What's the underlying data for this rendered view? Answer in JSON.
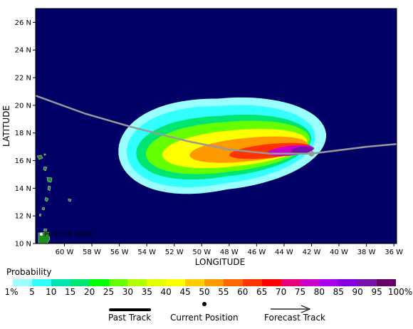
{
  "map": {
    "x_axis_title": "LONGITUDE",
    "y_axis_title": "LATITUDE",
    "lat_ticks": [
      "10 N",
      "12 N",
      "14 N",
      "16 N",
      "18 N",
      "20 N",
      "22 N",
      "24 N",
      "26 N"
    ],
    "lon_ticks": [
      "60 W",
      "58 W",
      "56 W",
      "54 W",
      "52 W",
      "50 W",
      "48 W",
      "46 W",
      "44 W",
      "42 W",
      "40 W",
      "38 W",
      "36 W"
    ],
    "lat_range": [
      10,
      27
    ],
    "lon_range": [
      -62.1,
      -35.8
    ],
    "place_label": "PORT OF SPAIN",
    "colors": {
      "ocean": "#000066",
      "land": "#1f8f1f",
      "track": "#999999"
    }
  },
  "probability": {
    "title": "Probability",
    "labels": [
      "1%",
      "5",
      "10",
      "15",
      "20",
      "25",
      "30",
      "35",
      "40",
      "45",
      "50",
      "55",
      "60",
      "65",
      "70",
      "75",
      "80",
      "85",
      "90",
      "95",
      "100%"
    ],
    "colors": [
      "#99ffff",
      "#33ffff",
      "#00e6b3",
      "#00e673",
      "#00ff00",
      "#66ff00",
      "#b3ff00",
      "#e6ff00",
      "#ffff00",
      "#ffcc00",
      "#ff9900",
      "#ff6600",
      "#ff3300",
      "#ff0000",
      "#e6007a",
      "#cc00cc",
      "#aa00ee",
      "#8800dd",
      "#7711aa",
      "#660066"
    ]
  },
  "legend": {
    "past_track": "Past Track",
    "current_position": "Current Position",
    "forecast_track": "Forecast Track"
  },
  "chart_data": {
    "type": "heatmap",
    "xlabel": "LONGITUDE",
    "ylabel": "LATITUDE",
    "xlim": [
      -62.1,
      -35.8
    ],
    "ylim": [
      10,
      27
    ],
    "track": [
      {
        "lon": -62.1,
        "lat": 20.7
      },
      {
        "lon": -58.5,
        "lat": 19.4
      },
      {
        "lon": -55.0,
        "lat": 18.4
      },
      {
        "lon": -51.0,
        "lat": 17.4
      },
      {
        "lon": -48.0,
        "lat": 16.8
      },
      {
        "lon": -45.0,
        "lat": 16.5
      },
      {
        "lon": -42.0,
        "lat": 16.5
      },
      {
        "lon": -38.0,
        "lat": 17.0
      },
      {
        "lon": -35.8,
        "lat": 17.2
      }
    ],
    "current_position": {
      "lon": -42.0,
      "lat": 16.5
    },
    "probability_zones": [
      {
        "min_pct": 1,
        "center": [
          -48.5,
          17.2
        ],
        "half_len": 7.6,
        "half_wid": 3.3,
        "tail_fatten": 1.25
      },
      {
        "min_pct": 5,
        "center": [
          -48.6,
          17.15
        ],
        "half_len": 6.9,
        "half_wid": 2.8,
        "tail_fatten": 1.25
      },
      {
        "min_pct": 15,
        "center": [
          -48.4,
          17.05
        ],
        "half_len": 6.4,
        "half_wid": 2.2,
        "tail_fatten": 1.2
      },
      {
        "min_pct": 25,
        "center": [
          -48.1,
          17.0
        ],
        "half_len": 6.0,
        "half_wid": 1.8,
        "tail_fatten": 1.15
      },
      {
        "min_pct": 40,
        "center": [
          -47.6,
          16.9
        ],
        "half_len": 5.3,
        "half_wid": 1.3,
        "tail_fatten": 1.1
      },
      {
        "min_pct": 50,
        "center": [
          -46.6,
          16.8
        ],
        "half_len": 4.3,
        "half_wid": 0.85,
        "tail_fatten": 1.05
      },
      {
        "min_pct": 60,
        "center": [
          -45.0,
          16.7
        ],
        "half_len": 3.0,
        "half_wid": 0.5,
        "tail_fatten": 1.0
      },
      {
        "min_pct": 75,
        "center": [
          -43.5,
          16.72
        ],
        "half_len": 1.7,
        "half_wid": 0.35,
        "tail_fatten": 1.0
      },
      {
        "min_pct": 90,
        "center": [
          -42.7,
          16.75
        ],
        "half_len": 0.8,
        "half_wid": 0.25,
        "tail_fatten": 1.0
      }
    ]
  }
}
